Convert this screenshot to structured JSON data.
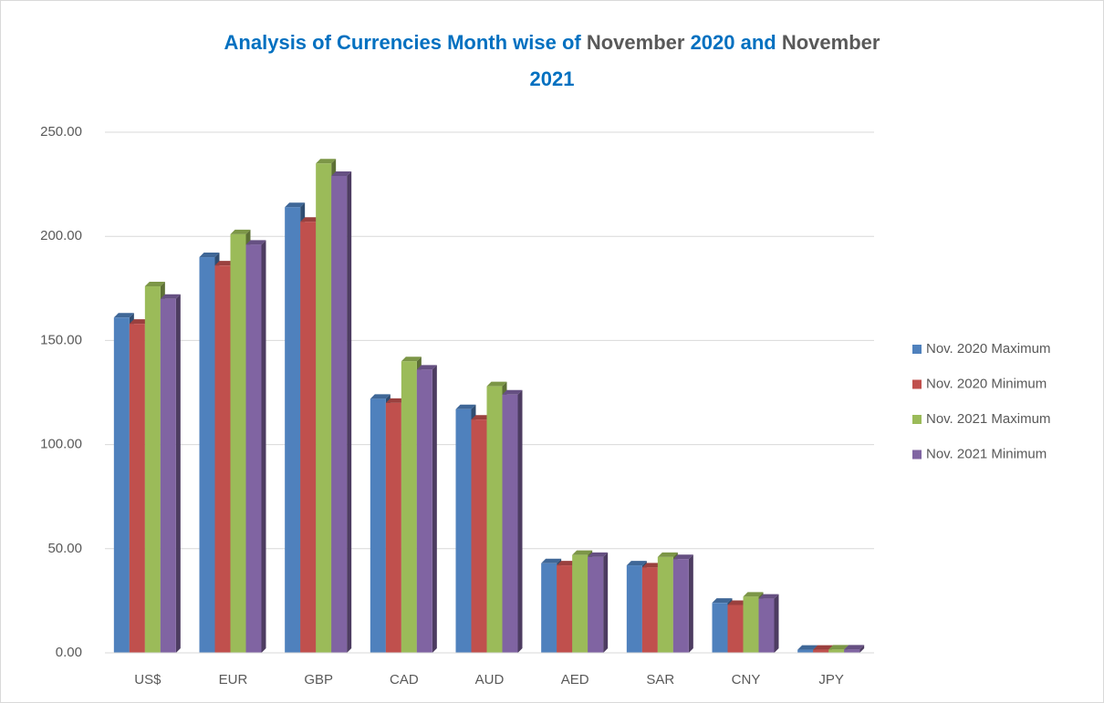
{
  "chart_data": {
    "type": "bar",
    "title": [
      {
        "text": "Analysis of Currencies Month wise of ",
        "color": "#0070c0"
      },
      {
        "text": "November",
        "color": "#595959"
      },
      {
        "text": " 2020 and ",
        "color": "#0070c0"
      },
      {
        "text": "November",
        "color": "#595959"
      },
      {
        "text": "2021",
        "color": "#0070c0"
      }
    ],
    "categories": [
      "US$",
      "EUR",
      "GBP",
      "CAD",
      "AUD",
      "AED",
      "SAR",
      "CNY",
      "JPY"
    ],
    "series": [
      {
        "name": "Nov. 2020 Maximum",
        "color": "#4f81bd",
        "values": [
          161,
          190,
          214,
          122,
          117,
          43,
          42,
          24,
          1.5
        ]
      },
      {
        "name": "Nov. 2020 Minimum",
        "color": "#c0504d",
        "values": [
          158,
          186,
          207,
          120,
          112,
          42,
          41,
          23,
          1.5
        ]
      },
      {
        "name": "Nov. 2021 Maximum",
        "color": "#9bbb59",
        "values": [
          176,
          201,
          235,
          140,
          128,
          47,
          46,
          27,
          1.6
        ]
      },
      {
        "name": "Nov. 2021 Minimum",
        "color": "#8064a2",
        "values": [
          170,
          196,
          229,
          136,
          124,
          46,
          45,
          26,
          1.6
        ]
      }
    ],
    "ylim": [
      0,
      250
    ],
    "yticks": [
      {
        "value": 0,
        "label": "0.00"
      },
      {
        "value": 50,
        "label": "50.00"
      },
      {
        "value": 100,
        "label": "100.00"
      },
      {
        "value": 150,
        "label": "150.00"
      },
      {
        "value": 200,
        "label": "200.00"
      },
      {
        "value": 250,
        "label": "250.00"
      }
    ],
    "grid": true,
    "legend": "right"
  }
}
